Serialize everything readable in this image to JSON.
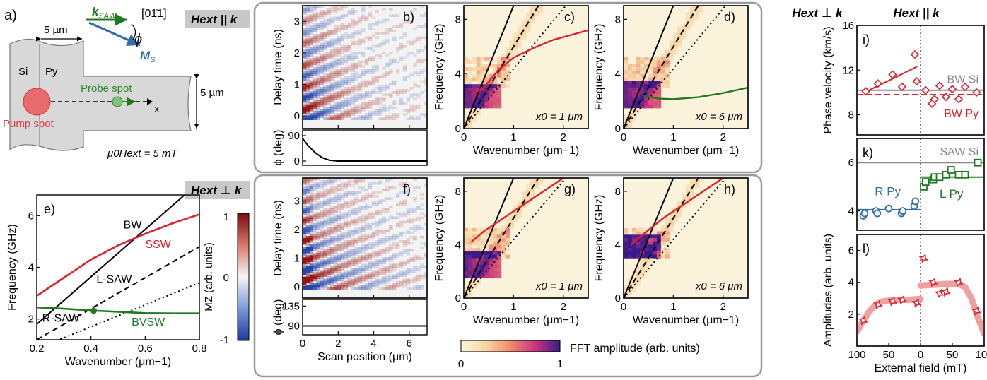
{
  "figure": {
    "a": {
      "label": "a)",
      "dim_width": "5 µm",
      "dim_height": "5 µm",
      "direction": "[01̄1]",
      "k_label": "k",
      "k_sub": "SAW",
      "phi_label": "ϕ",
      "m_label": "M",
      "m_sub": "S",
      "si_label": "Si",
      "py_label": "Py",
      "probe_label": "Probe spot",
      "pump_label": "Pump spot",
      "x_label": "x",
      "field_label": "μ0Hext = 5 mT",
      "colors": {
        "k": "#1f7a1f",
        "m": "#2e6fa6",
        "pump": "#e0393e",
        "probe": "#2a8a2a"
      }
    },
    "row_top_tag": "Hext || k",
    "row_bottom_tag": "Hext ⊥ k",
    "colorbar_mz": {
      "label": "MZ (arb. units)",
      "ticks": [
        "1",
        "0",
        "-1"
      ]
    },
    "colorbar_fft": {
      "label": "FFT amplitude (arb. units)",
      "ticks": [
        "0",
        "1"
      ]
    },
    "right_header_left": "Hext ⊥ k",
    "right_header_right": "Hext || k"
  },
  "chart_data": [
    {
      "id": "e",
      "panel_label": "e)",
      "type": "line",
      "xlabel": "Wavenumber (μm−1)",
      "ylabel": "Frequency (GHz)",
      "xlim": [
        0.2,
        0.8
      ],
      "ylim": [
        1.2,
        6.8
      ],
      "xticks": [
        0.2,
        0.4,
        0.6,
        0.8
      ],
      "yticks": [
        2,
        4,
        6
      ],
      "series": [
        {
          "name": "BW",
          "color": "#000000",
          "dash": "solid",
          "x": [
            0.2,
            0.8
          ],
          "y": [
            1.8,
            7.3
          ]
        },
        {
          "name": "SSW",
          "color": "#e0202a",
          "dash": "solid",
          "x": [
            0.2,
            0.3,
            0.4,
            0.5,
            0.6,
            0.7,
            0.8
          ],
          "y": [
            2.9,
            3.6,
            4.3,
            4.85,
            5.3,
            5.7,
            6.05
          ]
        },
        {
          "name": "L-SAW",
          "color": "#000000",
          "dash": "dashed",
          "x": [
            0.2,
            0.8
          ],
          "y": [
            1.2,
            4.8
          ]
        },
        {
          "name": "R-SAW",
          "color": "#000000",
          "dash": "dotted",
          "x": [
            0.2,
            0.8
          ],
          "y": [
            0.85,
            3.4
          ]
        },
        {
          "name": "BVSW",
          "color": "#1f7a1f",
          "dash": "solid",
          "x": [
            0.2,
            0.3,
            0.4,
            0.5,
            0.6,
            0.7,
            0.8
          ],
          "y": [
            2.45,
            2.4,
            2.33,
            2.28,
            2.23,
            2.22,
            2.22
          ]
        }
      ],
      "markers": [
        {
          "x": 0.41,
          "y": 2.32,
          "color": "#1f7a1f"
        }
      ]
    },
    {
      "id": "b",
      "panel_label": "b)",
      "type": "heatmap",
      "ylabel": "Delay time (ns)",
      "xlim": [
        0,
        7
      ],
      "ylim": [
        -0.4,
        3.5
      ],
      "yticks": [
        0,
        1,
        2,
        3
      ],
      "xticks": [
        0,
        2,
        4,
        6
      ]
    },
    {
      "id": "b_phi",
      "type": "line",
      "ylabel": "ϕ (deg)",
      "xlim": [
        0,
        7
      ],
      "ylim": [
        -15,
        110
      ],
      "yticks": [
        0,
        90
      ],
      "series": [
        {
          "name": "",
          "color": "#000000",
          "x": [
            0,
            0.3,
            0.7,
            1.1,
            1.5,
            2,
            7
          ],
          "y": [
            80,
            55,
            30,
            12,
            3,
            0,
            0
          ]
        }
      ]
    },
    {
      "id": "f",
      "panel_label": "f)",
      "type": "heatmap",
      "ylabel": "Delay time (ns)",
      "xlim": [
        0,
        7
      ],
      "ylim": [
        -0.4,
        3.8
      ],
      "yticks": [
        0,
        1,
        2,
        3
      ],
      "xticks": [
        0,
        2,
        4,
        6
      ]
    },
    {
      "id": "f_phi",
      "type": "line",
      "ylabel": "ϕ (deg)",
      "xlabel": "Scan position (μm)",
      "xlim": [
        0,
        7
      ],
      "ylim": [
        70,
        150
      ],
      "yticks": [
        90,
        135
      ],
      "xticks": [
        0,
        2,
        4,
        6
      ],
      "series": [
        {
          "name": "",
          "color": "#000000",
          "x": [
            0,
            7
          ],
          "y": [
            90,
            90
          ]
        }
      ]
    },
    {
      "id": "c",
      "panel_label": "c)",
      "type": "heatmap",
      "xlabel": "Wavenumber (μm−1)",
      "ylabel": "Frequency (GHz)",
      "annotation": "x0 = 1 μm",
      "xlim": [
        0,
        2.5
      ],
      "ylim": [
        0,
        9
      ],
      "xticks": [
        0,
        1,
        2
      ],
      "yticks": [
        0,
        4,
        8
      ],
      "lines": [
        {
          "color": "#000000",
          "dash": "solid",
          "x": [
            0,
            1.0
          ],
          "y": [
            0,
            9.0
          ]
        },
        {
          "color": "#000000",
          "dash": "dashed",
          "x": [
            0,
            1.5
          ],
          "y": [
            0,
            9.0
          ]
        },
        {
          "color": "#000000",
          "dash": "dotted",
          "x": [
            0,
            2.05
          ],
          "y": [
            0,
            9.0
          ]
        },
        {
          "color": "#e0202a",
          "dash": "solid",
          "x": [
            0.15,
            0.4,
            0.7,
            1.0,
            1.4,
            1.8,
            2.2,
            2.5
          ],
          "y": [
            2.5,
            3.0,
            4.3,
            5.2,
            5.9,
            6.5,
            6.9,
            7.2
          ]
        }
      ]
    },
    {
      "id": "d",
      "panel_label": "d)",
      "type": "heatmap",
      "xlabel": "Wavenumber (μm−1)",
      "ylabel": "Frequency (GHz)",
      "annotation": "x0 = 6 μm",
      "xlim": [
        0,
        2.5
      ],
      "ylim": [
        0,
        9
      ],
      "xticks": [
        0,
        1,
        2
      ],
      "yticks": [
        0,
        4,
        8
      ],
      "lines": [
        {
          "color": "#000000",
          "dash": "solid",
          "x": [
            0,
            1.0
          ],
          "y": [
            0,
            9.0
          ]
        },
        {
          "color": "#000000",
          "dash": "dashed",
          "x": [
            0,
            1.5
          ],
          "y": [
            0,
            9.0
          ]
        },
        {
          "color": "#000000",
          "dash": "dotted",
          "x": [
            0,
            2.05
          ],
          "y": [
            0,
            9.0
          ]
        },
        {
          "color": "#1f7a1f",
          "dash": "solid",
          "x": [
            0.4,
            0.7,
            1.0,
            1.5,
            2.0,
            2.5
          ],
          "y": [
            2.4,
            2.2,
            2.15,
            2.3,
            2.6,
            3.0
          ]
        }
      ]
    },
    {
      "id": "g",
      "panel_label": "g)",
      "type": "heatmap",
      "xlabel": "Wavenumber (μm−1)",
      "ylabel": "Frequency (GHz)",
      "annotation": "x0 = 1 μm",
      "xlim": [
        0,
        2.5
      ],
      "ylim": [
        0,
        9
      ],
      "xticks": [
        0,
        1,
        2
      ],
      "yticks": [
        0,
        4,
        8
      ],
      "lines": [
        {
          "color": "#000000",
          "dash": "solid",
          "x": [
            0,
            1.0
          ],
          "y": [
            0,
            9.0
          ]
        },
        {
          "color": "#000000",
          "dash": "dashed",
          "x": [
            0,
            1.5
          ],
          "y": [
            0,
            9.0
          ]
        },
        {
          "color": "#000000",
          "dash": "dotted",
          "x": [
            0,
            2.05
          ],
          "y": [
            0,
            9.0
          ]
        },
        {
          "color": "#e0202a",
          "dash": "solid",
          "x": [
            0.15,
            0.4,
            0.8,
            1.2,
            1.6,
            2.0
          ],
          "y": [
            4.2,
            5.0,
            6.0,
            7.0,
            8.0,
            9.0
          ]
        }
      ]
    },
    {
      "id": "h",
      "panel_label": "h)",
      "type": "heatmap",
      "xlabel": "Wavenumber (μm−1)",
      "ylabel": "Frequency (GHz)",
      "annotation": "x0 = 6 μm",
      "xlim": [
        0,
        2.5
      ],
      "ylim": [
        0,
        9
      ],
      "xticks": [
        0,
        1,
        2
      ],
      "yticks": [
        0,
        4,
        8
      ],
      "lines": [
        {
          "color": "#000000",
          "dash": "solid",
          "x": [
            0,
            1.0
          ],
          "y": [
            0,
            9.0
          ]
        },
        {
          "color": "#000000",
          "dash": "dashed",
          "x": [
            0,
            1.5
          ],
          "y": [
            0,
            9.0
          ]
        },
        {
          "color": "#000000",
          "dash": "dotted",
          "x": [
            0,
            2.05
          ],
          "y": [
            0,
            9.0
          ]
        },
        {
          "color": "#e0202a",
          "dash": "solid",
          "x": [
            0.15,
            0.4,
            0.8,
            1.2,
            1.6,
            2.0
          ],
          "y": [
            4.0,
            4.8,
            6.0,
            7.0,
            8.0,
            9.0
          ]
        }
      ]
    },
    {
      "id": "i",
      "panel_label": "i)",
      "type": "scatter",
      "ylabel": "Phase velocity (km/s)",
      "xlim": [
        -100,
        100
      ],
      "ylim": [
        6.2,
        16
      ],
      "yticks": [
        8,
        12,
        16
      ],
      "hlines": [
        {
          "name": "BW Si",
          "y": 10.2,
          "color": "#888888",
          "dash": "solid"
        },
        {
          "name": "BW Py",
          "y": 9.8,
          "color": "#e0202a",
          "dash": "dashed"
        }
      ],
      "series": [
        {
          "name": "",
          "color": "#e0202a",
          "marker": "diamond",
          "x": [
            -86,
            -67,
            -44,
            -29,
            -9,
            -6,
            8,
            18,
            22,
            30,
            40,
            50,
            60,
            70,
            88
          ],
          "y": [
            10.1,
            10.8,
            11.6,
            10.5,
            13.4,
            11.0,
            10.2,
            9.0,
            9.4,
            10.6,
            9.6,
            10.3,
            9.4,
            10.5,
            10.0
          ]
        }
      ],
      "fits": [
        {
          "color": "#e0202a",
          "x": [
            -88,
            -6
          ],
          "y": [
            10.0,
            12.3
          ]
        }
      ]
    },
    {
      "id": "k",
      "panel_label": "k)",
      "type": "scatter",
      "xlim": [
        -100,
        100
      ],
      "ylim": [
        3.2,
        7.0
      ],
      "yticks": [
        4,
        6
      ],
      "hlines": [
        {
          "name": "SAW Si",
          "y": 6.0,
          "color": "#888888",
          "dash": "solid"
        }
      ],
      "series": [
        {
          "name": "R Py",
          "color": "#2e6fa6",
          "marker": "circle",
          "x": [
            -90,
            -88,
            -70,
            -68,
            -50,
            -30,
            -28,
            -10,
            -8
          ],
          "y": [
            3.8,
            3.9,
            4.0,
            3.9,
            4.1,
            3.9,
            4.0,
            4.2,
            4.4
          ]
        },
        {
          "name": "L Py",
          "color": "#1f7a1f",
          "marker": "square",
          "x": [
            5,
            8,
            20,
            22,
            30,
            40,
            48,
            60,
            70,
            90
          ],
          "y": [
            5.0,
            5.2,
            5.3,
            5.4,
            5.4,
            5.5,
            5.7,
            5.5,
            5.5,
            6.0
          ]
        }
      ],
      "fits": [
        {
          "color": "#2e6fa6",
          "x": [
            -100,
            0
          ],
          "y": [
            4.05,
            4.05
          ]
        },
        {
          "color": "#1f7a1f",
          "x": [
            0,
            100
          ],
          "y": [
            5.4,
            5.4
          ]
        }
      ]
    },
    {
      "id": "l",
      "panel_label": "l)",
      "type": "scatter",
      "ylabel": "Amplitudes (arb. units)",
      "xlabel": "External field (mT)",
      "xlim": [
        -100,
        100
      ],
      "ylim": [
        0,
        7
      ],
      "yticks": [
        2,
        4,
        6
      ],
      "xtick_labels": [
        "100",
        "50",
        "0",
        "50",
        "100"
      ],
      "xticks": [
        -100,
        -50,
        0,
        50,
        100
      ],
      "series": [
        {
          "name": "",
          "color": "#e0202a",
          "marker": "star",
          "x": [
            -90,
            -67,
            -44,
            -29,
            -6,
            5,
            20,
            30,
            40,
            60,
            88
          ],
          "y": [
            1.6,
            2.6,
            2.8,
            2.9,
            2.7,
            5.5,
            4.0,
            3.3,
            3.4,
            4.0,
            2.2
          ]
        }
      ],
      "fits": [
        {
          "color": "#f0a0a0",
          "x": [
            -100,
            -90,
            -80,
            -70,
            -60,
            -40,
            -20,
            0
          ],
          "y": [
            0.9,
            1.6,
            2.2,
            2.6,
            2.8,
            2.9,
            2.9,
            2.95
          ]
        },
        {
          "color": "#f0a0a0",
          "x": [
            0,
            20,
            40,
            60,
            70,
            80,
            90,
            100
          ],
          "y": [
            3.8,
            3.85,
            3.9,
            3.9,
            3.7,
            3.0,
            1.8,
            0.8
          ]
        }
      ]
    }
  ]
}
